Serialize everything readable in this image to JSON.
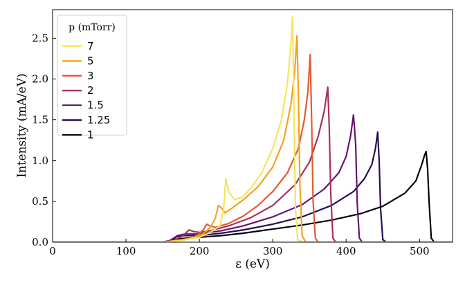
{
  "chart_data": {
    "type": "line",
    "title": "",
    "xlabel": "ε (eV)",
    "ylabel": "Intensity (mA/eV)",
    "xlim": [
      0,
      545
    ],
    "ylim": [
      0,
      2.85
    ],
    "xticks": [
      0,
      100,
      200,
      300,
      400,
      500
    ],
    "xtick_labels": [
      "0",
      "100",
      "200",
      "300",
      "400",
      "500"
    ],
    "yticks": [
      0.0,
      0.5,
      1.0,
      1.5,
      2.0,
      2.5
    ],
    "ytick_labels": [
      "0.0",
      "0.5",
      "1.0",
      "1.5",
      "2.0",
      "2.5"
    ],
    "grid": false,
    "legend": {
      "title": "p (mTorr)",
      "location": "top-left",
      "entries": [
        "7",
        "5",
        "3",
        "2",
        "1.5",
        "1.25",
        "1"
      ]
    },
    "series": [
      {
        "name": "7",
        "color": "#f3e55d",
        "x": [
          0,
          150,
          175,
          200,
          215,
          228,
          233,
          236,
          240,
          248,
          258,
          270,
          285,
          300,
          312,
          320,
          325,
          327,
          329,
          331,
          334,
          340,
          545
        ],
        "y": [
          0,
          0,
          0.02,
          0.06,
          0.12,
          0.2,
          0.4,
          0.78,
          0.62,
          0.52,
          0.55,
          0.66,
          0.85,
          1.15,
          1.5,
          1.95,
          2.45,
          2.77,
          1.6,
          0.4,
          0.03,
          0,
          0
        ]
      },
      {
        "name": "5",
        "color": "#f7a11a",
        "x": [
          0,
          150,
          170,
          190,
          205,
          215,
          222,
          226,
          230,
          235,
          245,
          260,
          280,
          300,
          315,
          325,
          330,
          333,
          335,
          337,
          340,
          345,
          545
        ],
        "y": [
          0,
          0,
          0.02,
          0.05,
          0.1,
          0.18,
          0.3,
          0.45,
          0.42,
          0.36,
          0.42,
          0.52,
          0.68,
          0.92,
          1.25,
          1.7,
          2.1,
          2.53,
          1.8,
          0.7,
          0.08,
          0,
          0
        ]
      },
      {
        "name": "3",
        "color": "#e35933",
        "x": [
          0,
          150,
          170,
          190,
          200,
          206,
          210,
          214,
          222,
          240,
          260,
          280,
          300,
          320,
          335,
          343,
          348,
          351,
          353,
          355,
          358,
          362,
          545
        ],
        "y": [
          0,
          0,
          0.02,
          0.05,
          0.1,
          0.16,
          0.22,
          0.2,
          0.18,
          0.23,
          0.32,
          0.45,
          0.62,
          0.85,
          1.15,
          1.5,
          1.85,
          2.3,
          1.5,
          0.5,
          0.05,
          0,
          0
        ]
      },
      {
        "name": "2",
        "color": "#a92e5e",
        "x": [
          0,
          150,
          165,
          178,
          186,
          192,
          200,
          215,
          240,
          270,
          300,
          330,
          350,
          362,
          370,
          375,
          377,
          379,
          382,
          386,
          545
        ],
        "y": [
          0,
          0,
          0.02,
          0.08,
          0.15,
          0.13,
          0.12,
          0.14,
          0.2,
          0.3,
          0.45,
          0.7,
          0.98,
          1.3,
          1.6,
          1.9,
          1.4,
          0.6,
          0.05,
          0,
          0
        ]
      },
      {
        "name": "1.5",
        "color": "#65156e",
        "x": [
          0,
          150,
          160,
          170,
          180,
          200,
          230,
          260,
          300,
          340,
          370,
          390,
          400,
          406,
          410,
          413,
          415,
          418,
          422,
          545
        ],
        "y": [
          0,
          0,
          0.02,
          0.08,
          0.1,
          0.1,
          0.14,
          0.2,
          0.31,
          0.46,
          0.65,
          0.85,
          1.05,
          1.3,
          1.56,
          1.2,
          0.5,
          0.05,
          0,
          0
        ]
      },
      {
        "name": "1.25",
        "color": "#280b54",
        "x": [
          0,
          150,
          160,
          170,
          180,
          200,
          230,
          260,
          300,
          340,
          380,
          410,
          425,
          435,
          440,
          443,
          445,
          447,
          450,
          455,
          545
        ],
        "y": [
          0,
          0,
          0.02,
          0.07,
          0.08,
          0.08,
          0.11,
          0.15,
          0.22,
          0.31,
          0.45,
          0.62,
          0.78,
          0.95,
          1.15,
          1.35,
          1.0,
          0.4,
          0.03,
          0,
          0
        ]
      },
      {
        "name": "1",
        "color": "#000004",
        "x": [
          0,
          150,
          160,
          170,
          185,
          200,
          230,
          260,
          300,
          340,
          380,
          420,
          450,
          480,
          495,
          503,
          507,
          509,
          511,
          513,
          516,
          520,
          545
        ],
        "y": [
          0,
          0,
          0.02,
          0.04,
          0.05,
          0.06,
          0.08,
          0.11,
          0.16,
          0.21,
          0.27,
          0.35,
          0.44,
          0.6,
          0.75,
          0.95,
          1.07,
          1.11,
          0.9,
          0.5,
          0.05,
          0,
          0
        ]
      }
    ]
  }
}
